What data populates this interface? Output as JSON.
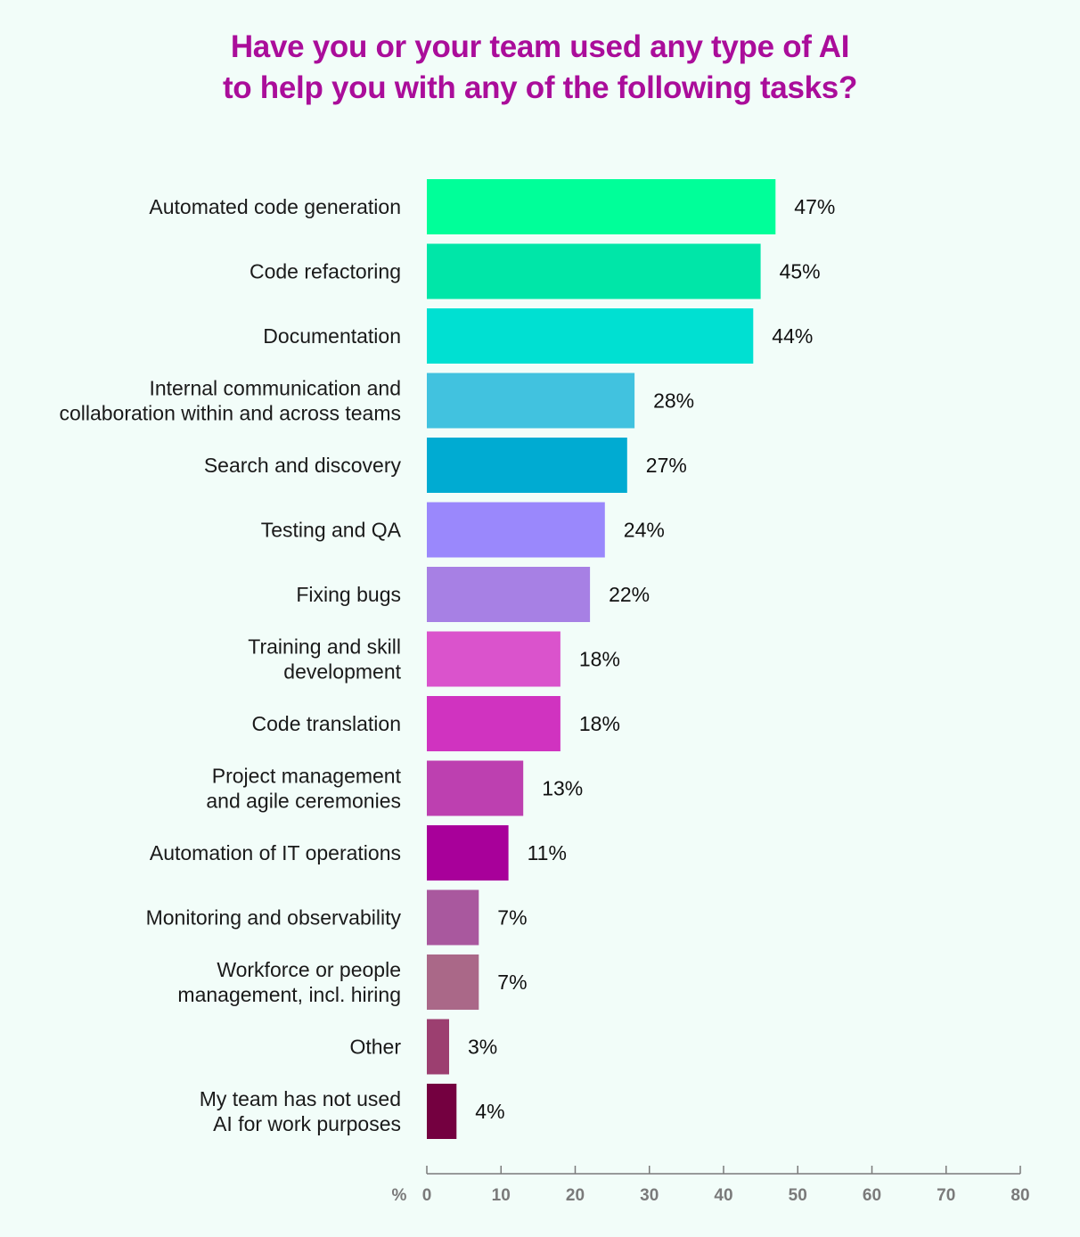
{
  "title_lines": [
    "Have you or your team used any type of AI",
    "to help you with any of the following tasks?"
  ],
  "chart_data": {
    "type": "bar",
    "orientation": "horizontal",
    "title": "Have you or your team used any type of AI to help you with any of the following tasks?",
    "xlabel": "%",
    "ylabel": "",
    "xlim": [
      0,
      80
    ],
    "x_ticks": [
      0,
      10,
      20,
      30,
      40,
      50,
      60,
      70,
      80
    ],
    "grid": false,
    "categories": [
      [
        "Automated code generation"
      ],
      [
        "Code refactoring"
      ],
      [
        "Documentation"
      ],
      [
        "Internal communication and",
        "collaboration within and across teams"
      ],
      [
        "Search and discovery"
      ],
      [
        "Testing and QA"
      ],
      [
        "Fixing bugs"
      ],
      [
        "Training and skill",
        "development"
      ],
      [
        "Code translation"
      ],
      [
        "Project management",
        "and agile ceremonies"
      ],
      [
        "Automation of IT operations"
      ],
      [
        "Monitoring and observability"
      ],
      [
        "Workforce or people",
        "management, incl. hiring"
      ],
      [
        "Other"
      ],
      [
        "My team has not used",
        "AI for work purposes"
      ]
    ],
    "values": [
      47,
      45,
      44,
      28,
      27,
      24,
      22,
      18,
      18,
      13,
      11,
      7,
      7,
      3,
      4
    ],
    "data_labels": [
      "47%",
      "45%",
      "44%",
      "28%",
      "27%",
      "24%",
      "22%",
      "18%",
      "18%",
      "13%",
      "11%",
      "7%",
      "7%",
      "3%",
      "4%"
    ],
    "colors": [
      "#00ff99",
      "#00e6a8",
      "#00e0d2",
      "#41c2df",
      "#00abd2",
      "#9a88fc",
      "#a780e4",
      "#da53cc",
      "#d033c0",
      "#bd40b0",
      "#a8009a",
      "#a9589e",
      "#aa6888",
      "#9c3f70",
      "#740040"
    ],
    "axis_color": "#7a7a7a",
    "label_color": "#1a1a1a",
    "title_color": "#aa0d9a"
  }
}
